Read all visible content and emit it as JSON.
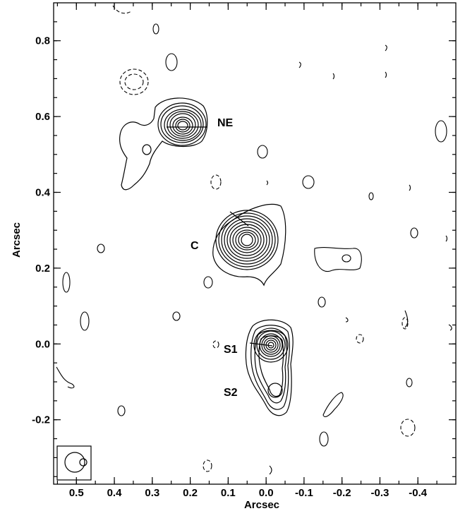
{
  "chart_data": {
    "type": "contour",
    "xlabel": "Arcsec",
    "ylabel": "Arcsec",
    "xlim": [
      0.56,
      -0.5
    ],
    "ylim": [
      -0.37,
      0.9
    ],
    "x_ticks": [
      0.5,
      0.4,
      0.3,
      0.2,
      0.1,
      0.0,
      -0.1,
      -0.2,
      -0.3,
      -0.4
    ],
    "x_tick_labels": [
      "0.5",
      "0.4",
      "0.3",
      "0.2",
      "0.1",
      "0.0",
      "-0.1",
      "-0.2",
      "-0.3",
      "-0.4"
    ],
    "y_ticks": [
      0.8,
      0.6,
      0.4,
      0.2,
      0.0,
      -0.2
    ],
    "y_tick_labels": [
      "0.8",
      "0.6",
      "0.4",
      "0.2",
      "0.0",
      "-0.2"
    ],
    "sources": [
      {
        "label": "NE",
        "x": 0.225,
        "y": 0.58,
        "levels": 9,
        "label_x": 0.15,
        "label_y": 0.585
      },
      {
        "label": "C",
        "x": 0.05,
        "y": 0.28,
        "levels": 11,
        "label_x": 0.17,
        "label_y": 0.25
      },
      {
        "label": "S1",
        "x": 0.0,
        "y": 0.0,
        "levels": 10,
        "label_x": 0.07,
        "label_y": -0.01
      },
      {
        "label": "S2",
        "x": -0.015,
        "y": -0.125,
        "levels": 4,
        "label_x": 0.07,
        "label_y": -0.13
      }
    ],
    "beam": {
      "x": 0.485,
      "y": -0.31
    }
  },
  "icons": [
    "contour-map"
  ]
}
